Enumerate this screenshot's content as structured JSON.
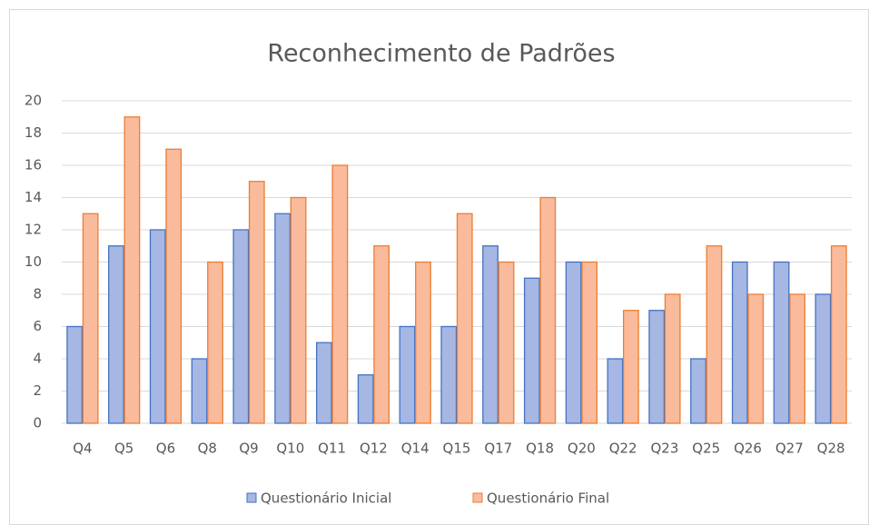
{
  "chart_data": {
    "type": "bar",
    "title": "Reconhecimento  de Padrões",
    "categories": [
      "Q4",
      "Q5",
      "Q6",
      "Q8",
      "Q9",
      "Q10",
      "Q11",
      "Q12",
      "Q14",
      "Q15",
      "Q17",
      "Q18",
      "Q20",
      "Q22",
      "Q23",
      "Q25",
      "Q26",
      "Q27",
      "Q28"
    ],
    "series": [
      {
        "name": "Questionário Inicial",
        "color": "#a5b7e2",
        "edge_color": "#4472c4",
        "values": [
          6,
          11,
          12,
          4,
          12,
          13,
          5,
          3,
          6,
          6,
          11,
          9,
          10,
          4,
          7,
          4,
          10,
          10,
          8
        ]
      },
      {
        "name": "Questionário Final",
        "color": "#f9bb9c",
        "edge_color": "#ed7d31",
        "values": [
          13,
          19,
          17,
          10,
          15,
          14,
          16,
          11,
          10,
          13,
          10,
          14,
          10,
          7,
          8,
          11,
          8,
          8,
          11
        ]
      }
    ],
    "ylim": [
      0,
      20
    ],
    "yticks": [
      0,
      2,
      4,
      6,
      8,
      10,
      12,
      14,
      16,
      18,
      20
    ],
    "grid": true,
    "legend": "bottom"
  }
}
